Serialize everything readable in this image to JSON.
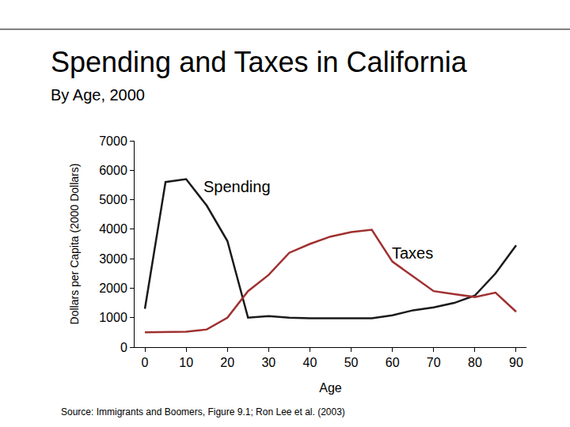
{
  "chart_data": {
    "type": "line",
    "title": "Spending and Taxes in California",
    "subtitle": "By Age, 2000",
    "x_label": "Age",
    "y_label": "Dollars per Capita (2000 Dollars)",
    "annotations": [
      "Source: Immigrants and Boomers, Figure 9.1; Ron Lee et al. (2003)"
    ],
    "x": [
      0,
      5,
      10,
      15,
      20,
      25,
      30,
      35,
      40,
      45,
      50,
      55,
      60,
      65,
      70,
      75,
      80,
      85,
      90
    ],
    "series": [
      {
        "name": "Spending",
        "color": "#1a1a1a",
        "values": [
          1300,
          5600,
          5700,
          4800,
          3600,
          1000,
          1050,
          1000,
          980,
          980,
          980,
          980,
          1080,
          1250,
          1350,
          1500,
          1750,
          2500,
          3450
        ]
      },
      {
        "name": "Taxes",
        "color": "#a03030",
        "values": [
          500,
          520,
          520,
          600,
          1000,
          1900,
          2450,
          3200,
          3500,
          3750,
          3900,
          3980,
          2900,
          2400,
          1900,
          1800,
          1700,
          1850,
          1200
        ]
      }
    ],
    "xlim": [
      -2.5,
      92.5
    ],
    "ylim": [
      0,
      7000
    ],
    "xticks": [
      0,
      10,
      20,
      30,
      40,
      50,
      60,
      70,
      80,
      90
    ],
    "yticks": [
      0,
      1000,
      2000,
      3000,
      4000,
      5000,
      6000,
      7000
    ],
    "grid": false
  }
}
